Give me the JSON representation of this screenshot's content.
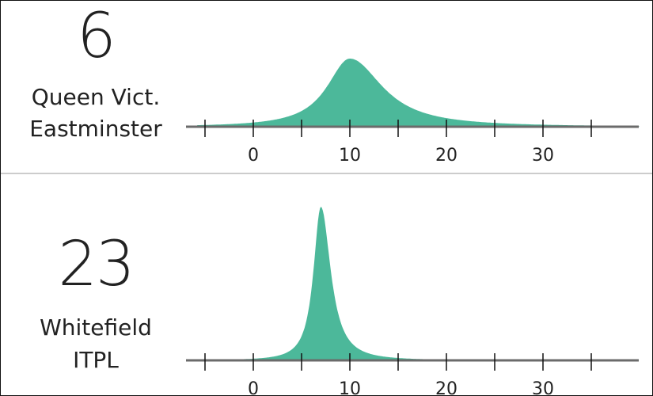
{
  "chart_data": [
    {
      "type": "area",
      "route_number": "6",
      "stop_line_1": "Queen Vict.",
      "stop_line_2": "Eastminster",
      "color": "#4cb89a",
      "xlim": [
        -5,
        40
      ],
      "ylim": [
        0,
        1
      ],
      "x_ticks": [
        -5,
        0,
        5,
        10,
        15,
        20,
        25,
        30,
        35
      ],
      "x_tick_labels": [
        {
          "value": 0,
          "label": "0"
        },
        {
          "value": 10,
          "label": "10"
        },
        {
          "value": 20,
          "label": "20"
        },
        {
          "value": 30,
          "label": "30"
        }
      ],
      "distribution": {
        "mode": 10,
        "peak": 1.0,
        "left_scale": 2.8,
        "right_scale": 4.0
      }
    },
    {
      "type": "area",
      "route_number": "23",
      "stop_line_1": "Whitefield",
      "stop_line_2": "ITPL",
      "color": "#4cb89a",
      "xlim": [
        -5,
        40
      ],
      "ylim": [
        0,
        1
      ],
      "x_ticks": [
        -5,
        0,
        5,
        10,
        15,
        20,
        25,
        30,
        35
      ],
      "x_tick_labels": [
        {
          "value": 0,
          "label": "0"
        },
        {
          "value": 10,
          "label": "10"
        },
        {
          "value": 20,
          "label": "20"
        },
        {
          "value": 30,
          "label": "30"
        }
      ],
      "distribution": {
        "mode": 7,
        "peak": 1.0,
        "left_scale": 0.9,
        "right_scale": 1.2
      }
    }
  ]
}
